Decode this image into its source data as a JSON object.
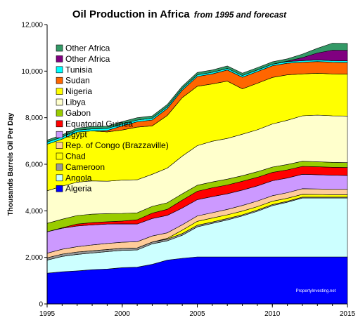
{
  "chart_data": {
    "type": "area",
    "stacked": true,
    "title": "Oil Production in Africa",
    "subtitle": "from 1995 and forecast",
    "ylabel": "Thousands Barrels Oil Per Day",
    "xlabel": "",
    "xlim": [
      1995,
      2015
    ],
    "ylim": [
      0,
      12000
    ],
    "x_ticks": [
      "1995",
      "2000",
      "2005",
      "2010",
      "2015"
    ],
    "y_ticks": [
      "0",
      "2,000",
      "4,000",
      "6,000",
      "8,000",
      "10,000",
      "12,000"
    ],
    "grid": false,
    "legend_position": "top-left",
    "watermark": "PropertyInvesting.net",
    "x": [
      1995,
      1996,
      1997,
      1998,
      1999,
      2000,
      2001,
      2002,
      2003,
      2004,
      2005,
      2006,
      2007,
      2008,
      2009,
      2010,
      2011,
      2012,
      2013,
      2014,
      2015
    ],
    "series": [
      {
        "name": "Algeria",
        "color": "#0000ff",
        "values": [
          1320,
          1380,
          1420,
          1470,
          1500,
          1560,
          1580,
          1700,
          1880,
          1960,
          2020,
          2020,
          2020,
          2020,
          2020,
          2020,
          2020,
          2020,
          2020,
          2020,
          2020
        ]
      },
      {
        "name": "Angola",
        "color": "#ccffff",
        "values": [
          560,
          660,
          710,
          720,
          750,
          740,
          740,
          880,
          830,
          990,
          1290,
          1440,
          1590,
          1760,
          1960,
          2200,
          2350,
          2530,
          2530,
          2530,
          2530
        ]
      },
      {
        "name": "Cameroon",
        "color": "#969696",
        "values": [
          100,
          100,
          100,
          95,
          90,
          90,
          85,
          80,
          75,
          70,
          70,
          60,
          60,
          50,
          50,
          50,
          40,
          40,
          40,
          40,
          40
        ]
      },
      {
        "name": "Chad",
        "color": "#ffff00",
        "values": [
          0,
          0,
          0,
          0,
          0,
          0,
          0,
          0,
          30,
          150,
          170,
          170,
          160,
          160,
          150,
          140,
          130,
          120,
          110,
          100,
          100
        ]
      },
      {
        "name": "Rep. of Congo (Brazzaville)",
        "color": "#ffcc99",
        "values": [
          200,
          210,
          230,
          250,
          260,
          260,
          270,
          260,
          240,
          230,
          230,
          230,
          230,
          240,
          240,
          240,
          240,
          240,
          240,
          240,
          240
        ]
      },
      {
        "name": "Egypt",
        "color": "#cc99ff",
        "values": [
          920,
          900,
          890,
          860,
          830,
          790,
          760,
          750,
          750,
          720,
          700,
          690,
          670,
          660,
          650,
          640,
          630,
          620,
          610,
          600,
          590
        ]
      },
      {
        "name": "Equatorial Guinea",
        "color": "#ff0000",
        "values": [
          0,
          20,
          80,
          100,
          100,
          120,
          180,
          230,
          260,
          340,
          360,
          380,
          380,
          380,
          370,
          360,
          350,
          340,
          340,
          340,
          340
        ]
      },
      {
        "name": "Gabon",
        "color": "#99cc00",
        "values": [
          360,
          370,
          370,
          360,
          350,
          330,
          300,
          290,
          280,
          270,
          260,
          250,
          250,
          240,
          240,
          230,
          230,
          220,
          220,
          210,
          210
        ]
      },
      {
        "name": "Libya",
        "color": "#ffffcc",
        "values": [
          1400,
          1420,
          1430,
          1430,
          1390,
          1430,
          1420,
          1380,
          1490,
          1620,
          1700,
          1750,
          1750,
          1780,
          1800,
          1850,
          1900,
          1950,
          2000,
          2000,
          2000
        ]
      },
      {
        "name": "Nigeria",
        "color": "#ffff00",
        "values": [
          2000,
          2020,
          2150,
          2150,
          2120,
          2150,
          2260,
          2080,
          2260,
          2510,
          2550,
          2460,
          2460,
          1950,
          2000,
          2000,
          1950,
          1800,
          1800,
          1800,
          1800
        ]
      },
      {
        "name": "Sudan",
        "color": "#ff6600",
        "values": [
          0,
          0,
          0,
          0,
          60,
          180,
          230,
          250,
          300,
          320,
          420,
          430,
          480,
          500,
          500,
          500,
          500,
          500,
          500,
          500,
          500
        ]
      },
      {
        "name": "Tunisia",
        "color": "#00ffff",
        "values": [
          90,
          90,
          85,
          85,
          85,
          80,
          75,
          75,
          70,
          70,
          70,
          70,
          70,
          70,
          70,
          70,
          70,
          70,
          70,
          70,
          70
        ]
      },
      {
        "name": "Other Africa",
        "color": "#800080",
        "values": [
          0,
          0,
          0,
          0,
          0,
          0,
          0,
          0,
          0,
          0,
          0,
          0,
          0,
          0,
          0,
          0,
          20,
          130,
          300,
          450,
          450
        ]
      },
      {
        "name": "Other Africa",
        "color": "#339966",
        "values": [
          90,
          90,
          90,
          100,
          100,
          100,
          100,
          100,
          100,
          100,
          100,
          100,
          100,
          100,
          100,
          100,
          100,
          150,
          200,
          300,
          300
        ]
      }
    ]
  }
}
